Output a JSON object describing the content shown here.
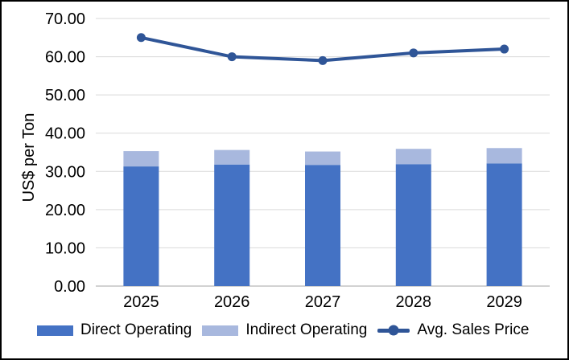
{
  "chart_data": {
    "type": "combo-stacked-bar-line",
    "categories": [
      "2025",
      "2026",
      "2027",
      "2028",
      "2029"
    ],
    "series": [
      {
        "name": "Direct Operating",
        "type": "bar",
        "stacked": true,
        "color": "#4472C4",
        "values": [
          31.3,
          31.8,
          31.7,
          31.9,
          32.1
        ]
      },
      {
        "name": "Indirect Operating",
        "type": "bar",
        "stacked": true,
        "color": "#A8B8DE",
        "values": [
          4.0,
          3.8,
          3.5,
          4.0,
          4.0
        ]
      },
      {
        "name": "Avg. Sales Price",
        "type": "line",
        "marker": "circle",
        "color": "#2F5597",
        "values": [
          65,
          60,
          59,
          61,
          62
        ]
      }
    ],
    "title": "",
    "xlabel": "",
    "ylabel": "US$ per Ton",
    "ylim": [
      0,
      70
    ],
    "ytick_step": 10,
    "ytick_labels": [
      "0.00",
      "10.00",
      "20.00",
      "30.00",
      "40.00",
      "50.00",
      "60.00",
      "70.00"
    ],
    "grid": true,
    "gridline_color": "#D9D9D9",
    "axis_line_color": "#D2D2D2",
    "background_color": "#FFFFFF",
    "frame_border_color": "#000000",
    "legend_position": "bottom"
  }
}
